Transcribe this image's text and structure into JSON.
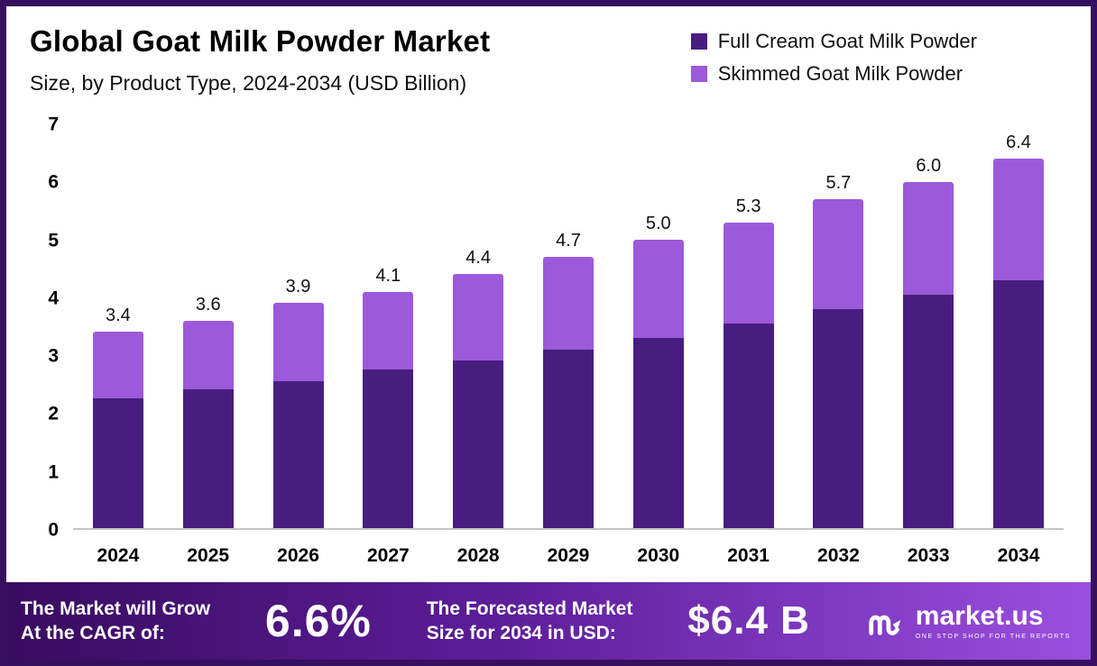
{
  "legend": {
    "items": [
      {
        "label": "Full Cream Goat Milk Powder",
        "color": "#481d80"
      },
      {
        "label": "Skimmed Goat Milk Powder",
        "color": "#9c59d9"
      }
    ]
  },
  "chart_data": {
    "type": "bar",
    "stacked": true,
    "title": "Global Goat Milk Powder Market",
    "subtitle": "Size, by Product Type, 2024-2034 (USD Billion)",
    "categories": [
      "2024",
      "2025",
      "2026",
      "2027",
      "2028",
      "2029",
      "2030",
      "2031",
      "2032",
      "2033",
      "2034"
    ],
    "series": [
      {
        "name": "Full Cream Goat Milk Powder",
        "color": "#481d80",
        "values": [
          2.25,
          2.4,
          2.55,
          2.75,
          2.9,
          3.1,
          3.3,
          3.55,
          3.8,
          4.05,
          4.3
        ]
      },
      {
        "name": "Skimmed Goat Milk Powder",
        "color": "#9c59d9",
        "values": [
          1.15,
          1.2,
          1.35,
          1.35,
          1.5,
          1.6,
          1.7,
          1.75,
          1.9,
          1.95,
          2.1
        ]
      }
    ],
    "totals": [
      3.4,
      3.6,
      3.9,
      4.1,
      4.4,
      4.7,
      5.0,
      5.3,
      5.7,
      6.0,
      6.4
    ],
    "data_labels": [
      "3.4",
      "3.6",
      "3.9",
      "4.1",
      "4.4",
      "4.7",
      "5.0",
      "5.3",
      "5.7",
      "6.0",
      "6.4"
    ],
    "ylim": [
      0,
      7
    ],
    "yticks": [
      "0",
      "1",
      "2",
      "3",
      "4",
      "5",
      "6",
      "7"
    ],
    "xlabel": "",
    "ylabel": "",
    "grid": false,
    "legend_position": "top-right"
  },
  "footer": {
    "cagr_label_line1": "The Market will Grow",
    "cagr_label_line2": "At the CAGR of:",
    "cagr_value": "6.6%",
    "forecast_label_line1": "The Forecasted Market",
    "forecast_label_line2": "Size for 2034 in USD:",
    "forecast_value": "$6.4 B",
    "brand_name": "market.us",
    "brand_tagline": "ONE STOP SHOP FOR THE REPORTS"
  }
}
